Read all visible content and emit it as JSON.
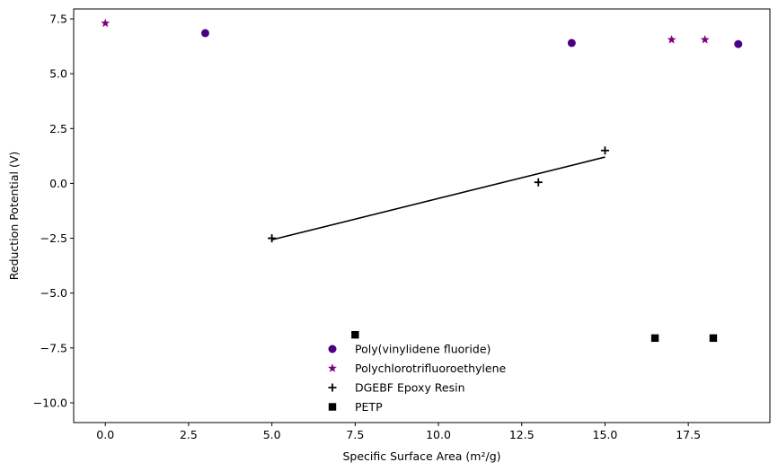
{
  "chart_data": {
    "type": "scatter",
    "xlabel": "Specific Surface Area (m²/g)",
    "ylabel": "Reduction Potential (V)",
    "xlim": [
      -0.95,
      19.95
    ],
    "ylim": [
      -10.9,
      7.95
    ],
    "xticks": [
      0.0,
      2.5,
      5.0,
      7.5,
      10.0,
      12.5,
      15.0,
      17.5
    ],
    "xtick_labels": [
      "0.0",
      "2.5",
      "5.0",
      "7.5",
      "10.0",
      "12.5",
      "15.0",
      "17.5"
    ],
    "yticks": [
      -10.0,
      -7.5,
      -5.0,
      -2.5,
      0.0,
      2.5,
      5.0,
      7.5
    ],
    "ytick_labels": [
      "−10.0",
      "−7.5",
      "−5.0",
      "−2.5",
      "0.0",
      "2.5",
      "5.0",
      "7.5"
    ],
    "grid": false,
    "legend_position": "lower-center",
    "series": [
      {
        "name": "Poly(vinylidene fluoride)",
        "marker": "circle",
        "color": "#4b0082",
        "points": [
          [
            3.0,
            6.85
          ],
          [
            14.0,
            6.4
          ],
          [
            19.0,
            6.35
          ]
        ]
      },
      {
        "name": "Polychlorotrifluoroethylene",
        "marker": "star",
        "color": "#800080",
        "points": [
          [
            0.0,
            7.3
          ],
          [
            17.0,
            6.55
          ],
          [
            18.0,
            6.55
          ]
        ]
      },
      {
        "name": "DGEBF Epoxy Resin",
        "marker": "plus",
        "color": "#000000",
        "points": [
          [
            5.0,
            -2.5
          ],
          [
            13.0,
            0.05
          ],
          [
            15.0,
            1.5
          ]
        ]
      },
      {
        "name": "PETP",
        "marker": "square",
        "color": "#000000",
        "points": [
          [
            7.5,
            -6.9
          ],
          [
            16.5,
            -7.05
          ],
          [
            18.25,
            -7.05
          ]
        ]
      }
    ],
    "trend_line": {
      "color": "#000000",
      "points": [
        [
          5.0,
          -2.57
        ],
        [
          15.0,
          1.2
        ]
      ]
    }
  }
}
